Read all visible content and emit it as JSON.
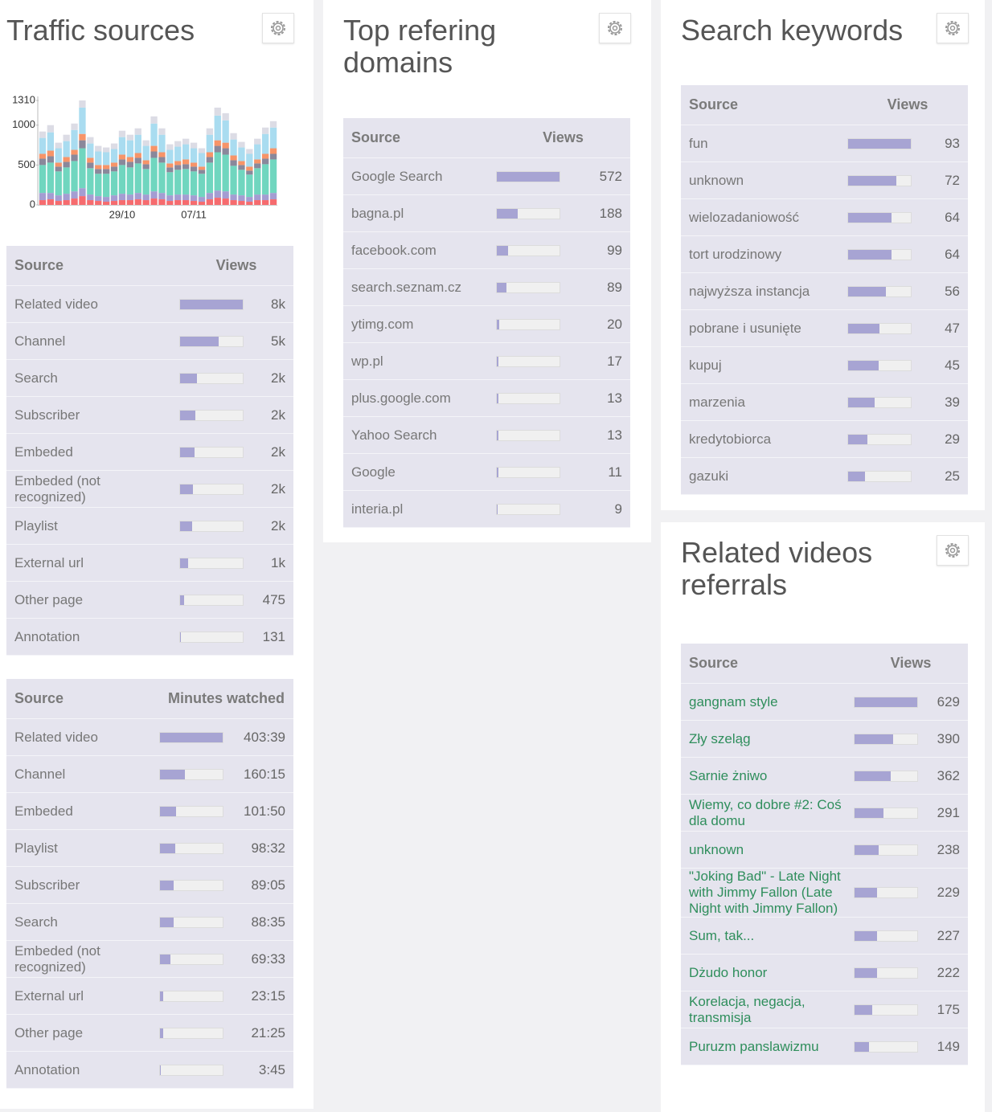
{
  "chart_data": {
    "type": "bar",
    "stacked": true,
    "categories": [
      null,
      null,
      null,
      null,
      null,
      null,
      null,
      null,
      null,
      null,
      "29/10",
      null,
      null,
      null,
      null,
      null,
      null,
      null,
      null,
      "07/11",
      null,
      null,
      null,
      null,
      null,
      null,
      null,
      null,
      null,
      null
    ],
    "ylim": [
      0,
      1310
    ],
    "yticks": [
      0,
      500,
      1000,
      1310
    ],
    "series": [
      {
        "color": "#f66b6e",
        "values": [
          60,
          70,
          50,
          60,
          80,
          110,
          60,
          50,
          40,
          50,
          60,
          60,
          70,
          60,
          80,
          70,
          50,
          60,
          60,
          50,
          40,
          70,
          90,
          80,
          60,
          50,
          40,
          60,
          60,
          70
        ]
      },
      {
        "color": "#a49dd2",
        "values": [
          90,
          80,
          70,
          80,
          90,
          100,
          70,
          60,
          60,
          70,
          80,
          70,
          80,
          70,
          90,
          80,
          70,
          70,
          70,
          70,
          60,
          80,
          90,
          90,
          70,
          70,
          60,
          70,
          70,
          80
        ]
      },
      {
        "color": "#70d6bf",
        "values": [
          350,
          380,
          300,
          330,
          380,
          500,
          330,
          280,
          290,
          300,
          360,
          340,
          370,
          320,
          420,
          380,
          290,
          310,
          320,
          300,
          290,
          380,
          480,
          460,
          360,
          320,
          280,
          330,
          380,
          420
        ]
      },
      {
        "color": "#8a889b",
        "values": [
          80,
          80,
          60,
          70,
          80,
          100,
          70,
          60,
          60,
          60,
          70,
          70,
          70,
          60,
          80,
          70,
          60,
          60,
          60,
          60,
          50,
          70,
          80,
          80,
          70,
          60,
          50,
          60,
          70,
          70
        ]
      },
      {
        "color": "#f79468",
        "values": [
          60,
          70,
          50,
          60,
          60,
          80,
          60,
          50,
          50,
          50,
          60,
          60,
          60,
          50,
          70,
          60,
          50,
          50,
          60,
          50,
          40,
          60,
          70,
          70,
          60,
          50,
          50,
          50,
          60,
          70
        ]
      },
      {
        "color": "#a9dcf0",
        "values": [
          200,
          230,
          180,
          200,
          250,
          330,
          180,
          170,
          160,
          170,
          220,
          210,
          230,
          180,
          280,
          220,
          170,
          180,
          190,
          180,
          170,
          220,
          310,
          280,
          200,
          170,
          160,
          190,
          250,
          260
        ]
      },
      {
        "color": "#dcdce5",
        "values": [
          80,
          90,
          70,
          80,
          80,
          90,
          80,
          70,
          60,
          70,
          80,
          70,
          80,
          70,
          90,
          80,
          70,
          70,
          70,
          70,
          60,
          80,
          100,
          90,
          80,
          70,
          60,
          70,
          80,
          80
        ]
      }
    ]
  },
  "panels": [
    {
      "title": "Traffic sources",
      "tables": [
        {
          "columns": [
            "Source",
            "Views"
          ],
          "labels": [
            "Related video",
            "Channel",
            "Search",
            "Subscriber",
            "Embeded",
            "Embeded (not recognized)",
            "Playlist",
            "External url",
            "Other page",
            "Annotation"
          ],
          "values": [
            8000,
            4900,
            2200,
            1900,
            1800,
            1600,
            1550,
            1000,
            475,
            131
          ],
          "value_labels": [
            "8k",
            "5k",
            "2k",
            "2k",
            "2k",
            "2k",
            "2k",
            "1k",
            "475",
            "131"
          ]
        },
        {
          "columns": [
            "Source",
            "Minutes watched"
          ],
          "labels": [
            "Related video",
            "Channel",
            "Embeded",
            "Playlist",
            "Subscriber",
            "Search",
            "Embeded (not recognized)",
            "External url",
            "Other page",
            "Annotation"
          ],
          "values": [
            403.65,
            160.25,
            101.83,
            98.53,
            89.08,
            88.58,
            69.55,
            23.25,
            21.42,
            3.75
          ],
          "value_labels": [
            "403:39",
            "160:15",
            "101:50",
            "98:32",
            "89:05",
            "88:35",
            "69:33",
            "23:15",
            "21:25",
            "3:45"
          ]
        }
      ]
    },
    {
      "title": "Top refering domains",
      "tables": [
        {
          "columns": [
            "Source",
            "Views"
          ],
          "labels": [
            "Google Search",
            "bagna.pl",
            "facebook.com",
            "search.seznam.cz",
            "ytimg.com",
            "wp.pl",
            "plus.google.com",
            "Yahoo Search",
            "Google",
            "interia.pl"
          ],
          "values": [
            572,
            188,
            99,
            89,
            20,
            17,
            13,
            13,
            11,
            9
          ]
        }
      ]
    },
    {
      "title": "Search keywords",
      "tables": [
        {
          "columns": [
            "Source",
            "Views"
          ],
          "labels": [
            "fun",
            "unknown",
            "wielozadaniowość",
            "tort urodzinowy",
            "najwyższa instancja",
            "pobrane i usunięte",
            "kupuj",
            "marzenia",
            "kredytobiorca",
            "gazuki"
          ],
          "values": [
            93,
            72,
            64,
            64,
            56,
            47,
            45,
            39,
            29,
            25
          ]
        }
      ]
    },
    {
      "title": "Related videos referrals",
      "label_color": "#2f8e5c",
      "tables": [
        {
          "columns": [
            "Source",
            "Views"
          ],
          "labels": [
            "gangnam style",
            "Zły szeląg",
            "Sarnie żniwo",
            "Wiemy, co dobre #2: Coś dla domu",
            "unknown",
            "\"Joking Bad\" - Late Night with Jimmy Fallon (Late Night with Jimmy Fallon)",
            "Sum, tak...",
            "Dżudo honor",
            "Korelacja, negacja, transmisja",
            "Puruzm panslawizmu"
          ],
          "values": [
            629,
            390,
            362,
            291,
            238,
            229,
            227,
            222,
            175,
            149
          ]
        }
      ]
    }
  ]
}
